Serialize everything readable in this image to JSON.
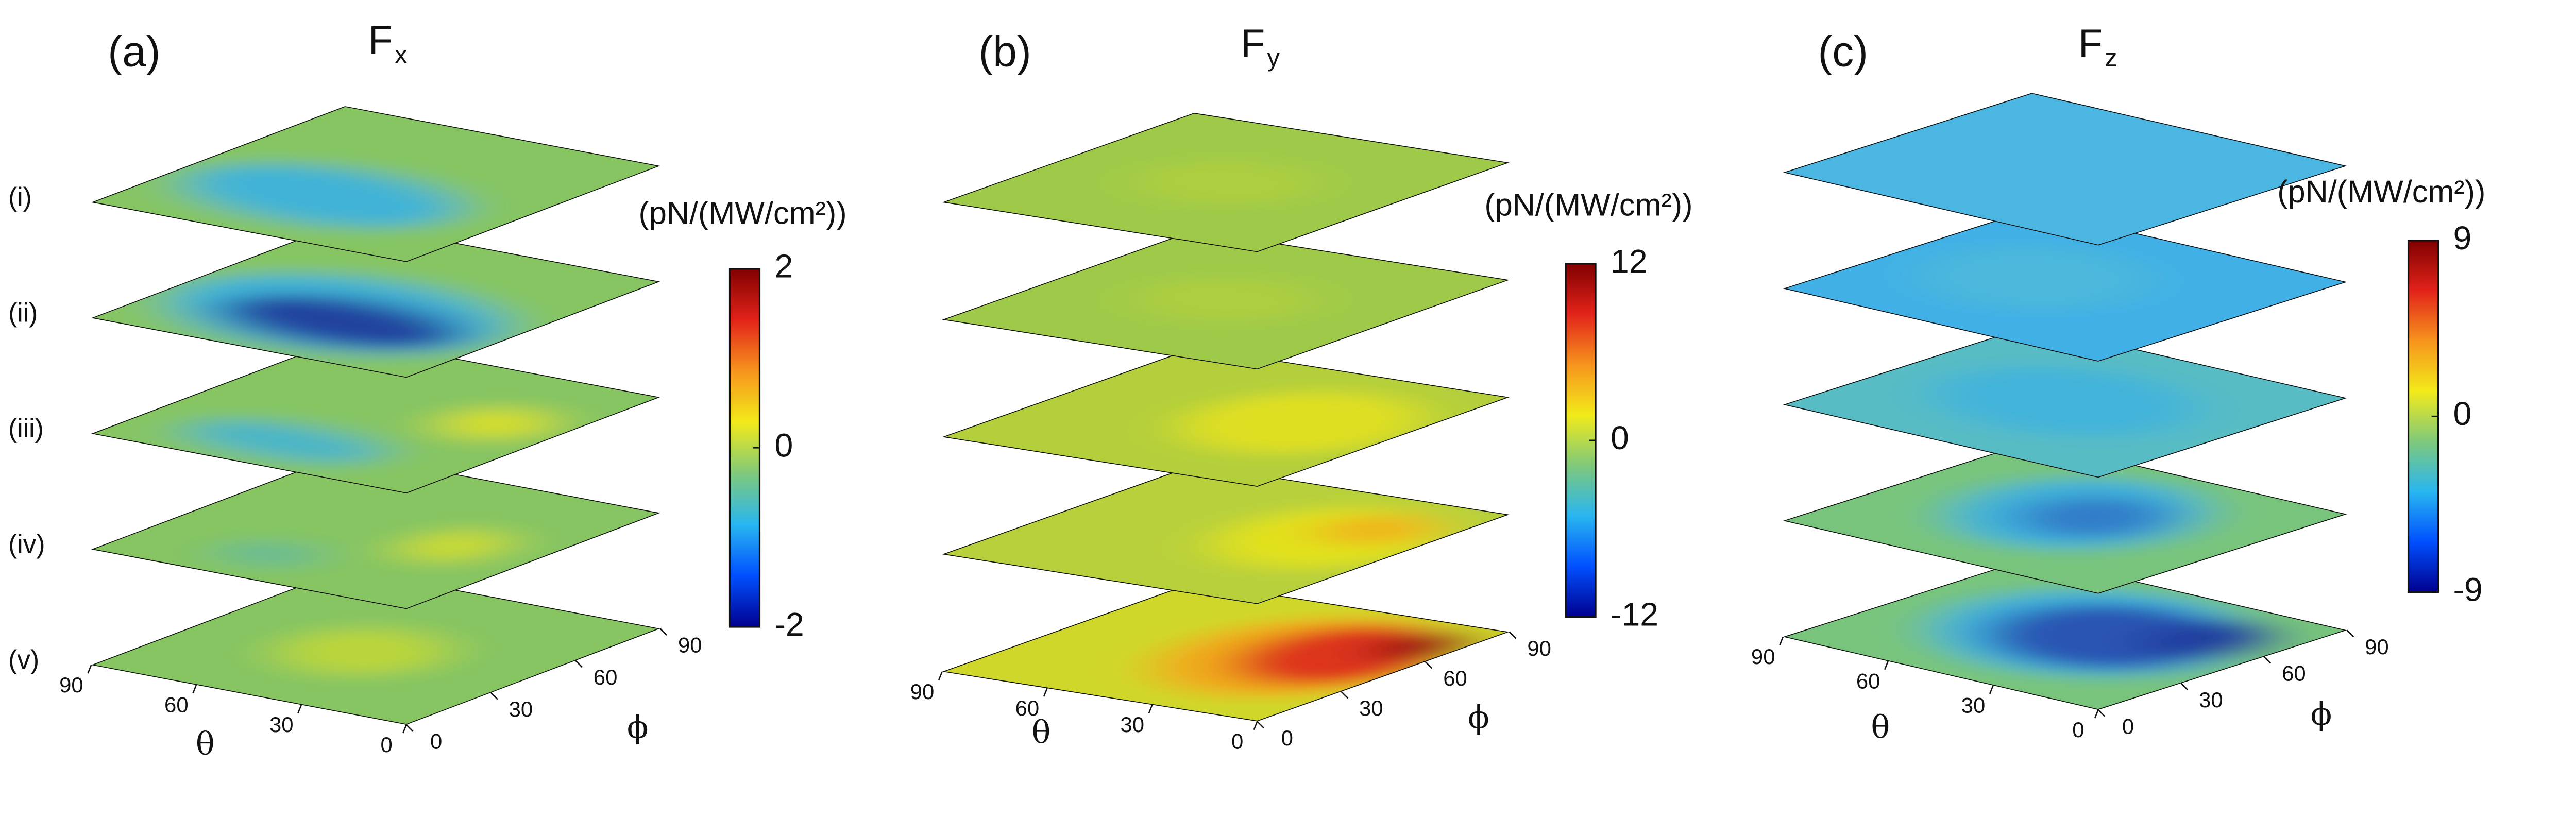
{
  "chart_data": [
    {
      "type": "surface_stack",
      "label": "(a)",
      "title": "F",
      "title_subscript": "x",
      "row_labels": [
        "(i)",
        "(ii)",
        "(iii)",
        "(iv)",
        "(v)"
      ],
      "colorbar_label": "(pN/(MW/cm²))",
      "clim": [
        -2,
        2
      ],
      "cticks": [
        -2,
        0,
        2
      ],
      "colormap": [
        "#00008f",
        "#0050ff",
        "#29b6f0",
        "#7fc97a",
        "#f2ea1a",
        "#f7941d",
        "#e2231a",
        "#800000"
      ],
      "xlabel": "θ",
      "xlim": [
        0,
        90
      ],
      "xticks": [
        0,
        30,
        60,
        90
      ],
      "ylabel": "ϕ",
      "ylim": [
        0,
        90
      ],
      "yticks": [
        0,
        30,
        60,
        90
      ]
    },
    {
      "type": "surface_stack",
      "label": "(b)",
      "title": "F",
      "title_subscript": "y",
      "colorbar_label": "(pN/(MW/cm²))",
      "clim": [
        -12,
        12
      ],
      "cticks": [
        -12,
        0,
        12
      ],
      "colormap": [
        "#00008f",
        "#0050ff",
        "#29b6f0",
        "#7fc97a",
        "#f2ea1a",
        "#f7941d",
        "#e2231a",
        "#800000"
      ],
      "xlabel": "θ",
      "xlim": [
        0,
        90
      ],
      "xticks": [
        0,
        30,
        60,
        90
      ],
      "ylabel": "ϕ",
      "ylim": [
        0,
        90
      ],
      "yticks": [
        0,
        30,
        60,
        90
      ]
    },
    {
      "type": "surface_stack",
      "label": "(c)",
      "title": "F",
      "title_subscript": "z",
      "colorbar_label": "(pN/(MW/cm²))",
      "clim": [
        -9,
        9
      ],
      "cticks": [
        -9,
        0,
        9
      ],
      "colormap": [
        "#00008f",
        "#0050ff",
        "#29b6f0",
        "#7fc97a",
        "#f2ea1a",
        "#f7941d",
        "#e2231a",
        "#800000"
      ],
      "xlabel": "θ",
      "xlim": [
        0,
        90
      ],
      "xticks": [
        0,
        30,
        60,
        90
      ],
      "ylabel": "ϕ",
      "ylim": [
        0,
        90
      ],
      "yticks": [
        0,
        30,
        60,
        90
      ]
    }
  ]
}
